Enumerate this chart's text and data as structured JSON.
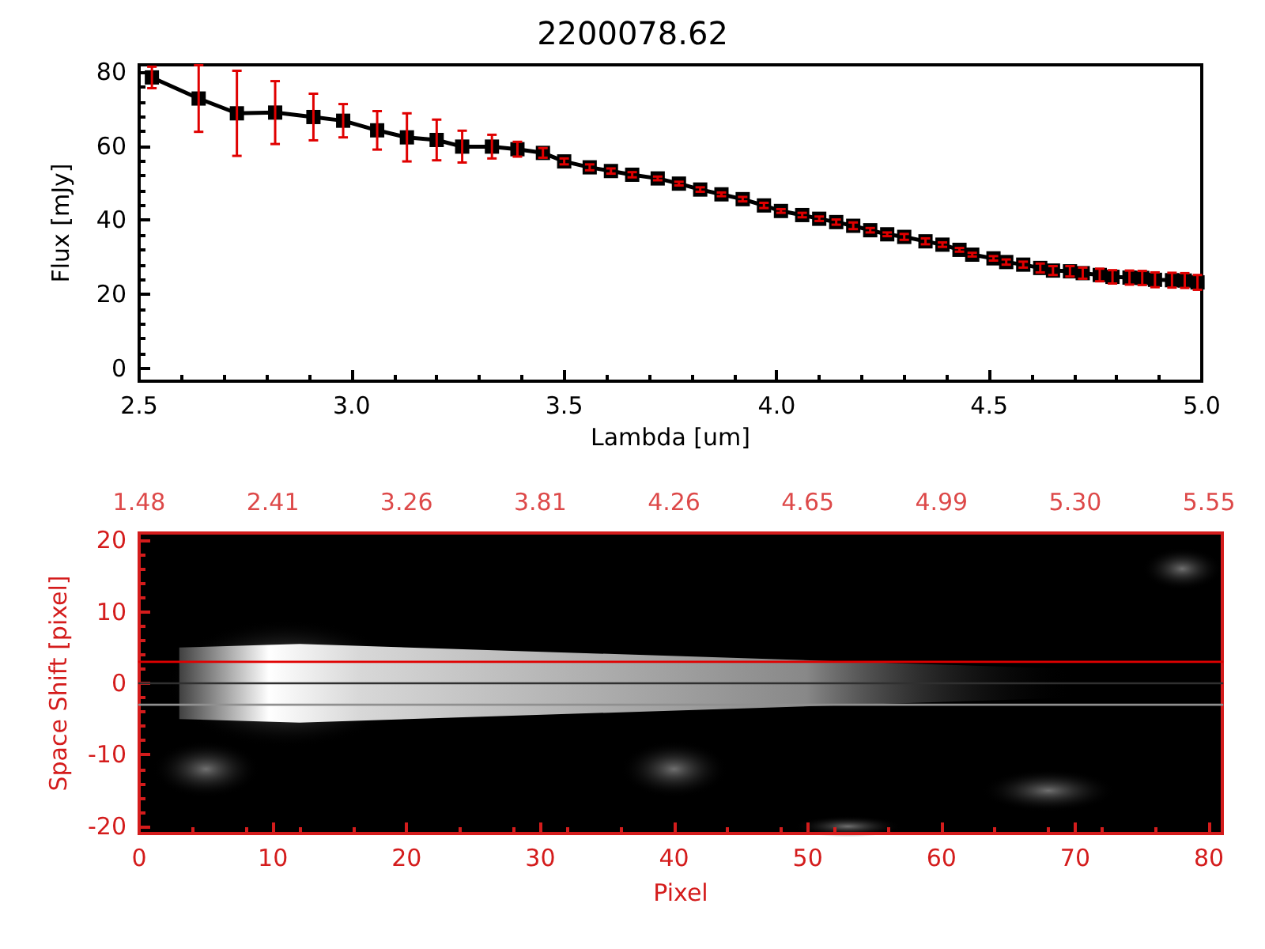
{
  "chart_data": [
    {
      "type": "line",
      "title": "2200078.62",
      "xlabel": "Lambda [um]",
      "ylabel": "Flux [mJy]",
      "xlim": [
        2.5,
        5.0
      ],
      "xticks": [
        {
          "value": 2.5,
          "label": "2.5"
        },
        {
          "value": 3,
          "label": "3.0"
        },
        {
          "value": 3.5,
          "label": "3.5"
        },
        {
          "value": 4,
          "label": "4.0"
        },
        {
          "value": 4.5,
          "label": "4.5"
        },
        {
          "value": 5,
          "label": "5.0"
        }
      ],
      "ylim": [
        -3.5,
        82
      ],
      "yticks": [
        0,
        20,
        40,
        60,
        80
      ],
      "grid": false,
      "marker": "square",
      "line_style": "solid",
      "series": [
        {
          "color": "#000000",
          "x": [
            2.53,
            2.64,
            2.73,
            2.82,
            2.91,
            2.98,
            3.06,
            3.13,
            3.2,
            3.26,
            3.33,
            3.39,
            3.45,
            3.5,
            3.56,
            3.61,
            3.66,
            3.72,
            3.77,
            3.82,
            3.87,
            3.92,
            3.97,
            4.01,
            4.06,
            4.1,
            4.14,
            4.18,
            4.22,
            4.26,
            4.3,
            4.35,
            4.39,
            4.43,
            4.46,
            4.51,
            4.54,
            4.58,
            4.62,
            4.65,
            4.69,
            4.72,
            4.76,
            4.79,
            4.83,
            4.86,
            4.89,
            4.93,
            4.96,
            4.99
          ],
          "values": [
            78.6,
            72.9,
            68.9,
            69.1,
            67.9,
            66.9,
            64.3,
            62.4,
            61.7,
            59.9,
            59.9,
            59.2,
            58.2,
            55.9,
            54.3,
            53.3,
            52.3,
            51.3,
            49.9,
            48.3,
            47.0,
            45.7,
            44.0,
            42.5,
            41.4,
            40.4,
            39.5,
            38.5,
            37.3,
            36.2,
            35.5,
            34.3,
            33.4,
            32.0,
            30.7,
            29.7,
            28.7,
            28.0,
            27.1,
            26.4,
            26.2,
            25.7,
            25.2,
            24.7,
            24.5,
            24.4,
            23.9,
            23.8,
            23.7,
            23.2
          ],
          "errors": [
            2.9,
            9,
            11.5,
            8.5,
            6.3,
            4.5,
            5.2,
            6.5,
            5.5,
            4.3,
            3.2,
            2,
            1.3,
            0.8,
            0.8,
            0.7,
            0.7,
            0.5,
            0.5,
            0.6,
            0.5,
            0.6,
            0.7,
            0.5,
            0.6,
            0.6,
            0.7,
            0.9,
            0.6,
            0.5,
            0.8,
            0.8,
            0.6,
            0.5,
            0.5,
            0.6,
            0.7,
            0.8,
            1.2,
            1.2,
            1.4,
            1.5,
            1.7,
            1.8,
            1.9,
            1.9,
            2,
            2,
            2,
            2
          ]
        }
      ]
    },
    {
      "type": "line",
      "xlabel": "Pixel",
      "ylabel": "Space Shift [pixel]",
      "marker": "none",
      "line_style": "solid",
      "grid": false,
      "xlim": [
        0,
        81
      ],
      "xticks": [
        0,
        10,
        20,
        30,
        40,
        50,
        60,
        70,
        80
      ],
      "annotations": [
        "1.48",
        "2.41",
        "3.26",
        "3.81",
        "4.26",
        "4.65",
        "4.99",
        "5.30",
        "5.55"
      ],
      "ylim": [
        -21,
        21
      ],
      "yticks": [
        -20,
        -10,
        0,
        10,
        20
      ],
      "series": [
        {
          "color": "#e00000",
          "x": [
            0,
            81
          ],
          "values": [
            3,
            3
          ]
        },
        {
          "color": "#303030",
          "x": [
            0,
            81
          ],
          "values": [
            0,
            0
          ]
        },
        {
          "color": "#909090",
          "x": [
            0,
            81
          ],
          "values": [
            -3,
            -3
          ]
        }
      ]
    }
  ]
}
